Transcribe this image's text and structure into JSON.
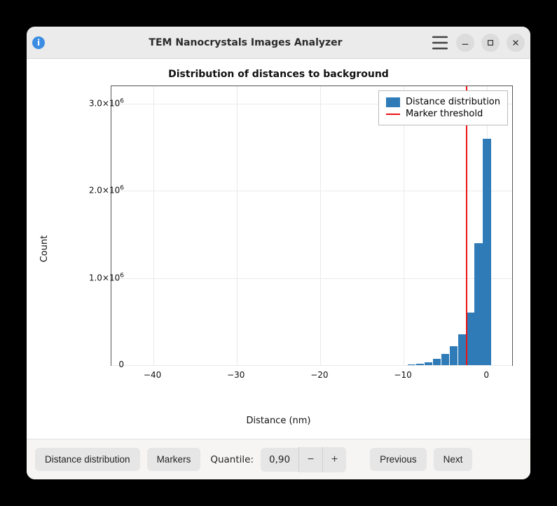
{
  "window": {
    "title": "TEM Nanocrystals Images Analyzer"
  },
  "chart": {
    "type": "histogram",
    "title": "Distribution of distances to background",
    "xlabel": "Distance (nm)",
    "ylabel": "Count",
    "xlim": [
      -45,
      3
    ],
    "ylim": [
      0,
      3200000
    ],
    "xticks": [
      -40,
      -30,
      -20,
      -10,
      0
    ],
    "yticks": [
      0,
      1000000,
      2000000,
      3000000
    ],
    "ytick_labels": [
      "0",
      "1.0×10⁶",
      "2.0×10⁶",
      "3.0×10⁶"
    ],
    "background_color": "#ffffff",
    "grid_color": "#eaeaea",
    "axis_color": "#555555",
    "bar_color": "#2f7bb8",
    "threshold_color": "#ee1111",
    "bars": [
      {
        "x": -9.0,
        "count": 5000
      },
      {
        "x": -8.0,
        "count": 15000
      },
      {
        "x": -7.0,
        "count": 35000
      },
      {
        "x": -6.0,
        "count": 70000
      },
      {
        "x": -5.0,
        "count": 130000
      },
      {
        "x": -4.0,
        "count": 220000
      },
      {
        "x": -3.0,
        "count": 350000
      },
      {
        "x": -2.0,
        "count": 600000
      },
      {
        "x": -1.0,
        "count": 1400000
      },
      {
        "x": 0.0,
        "count": 2600000
      }
    ],
    "bar_width_data": 1.0,
    "marker_threshold_x": -2.5,
    "legend": {
      "series_label": "Distance distribution",
      "threshold_label": "Marker threshold"
    }
  },
  "toolbar": {
    "distance_distribution": "Distance distribution",
    "markers": "Markers",
    "quantile_label": "Quantile:",
    "quantile_value": "0,90",
    "previous": "Previous",
    "next": "Next"
  }
}
